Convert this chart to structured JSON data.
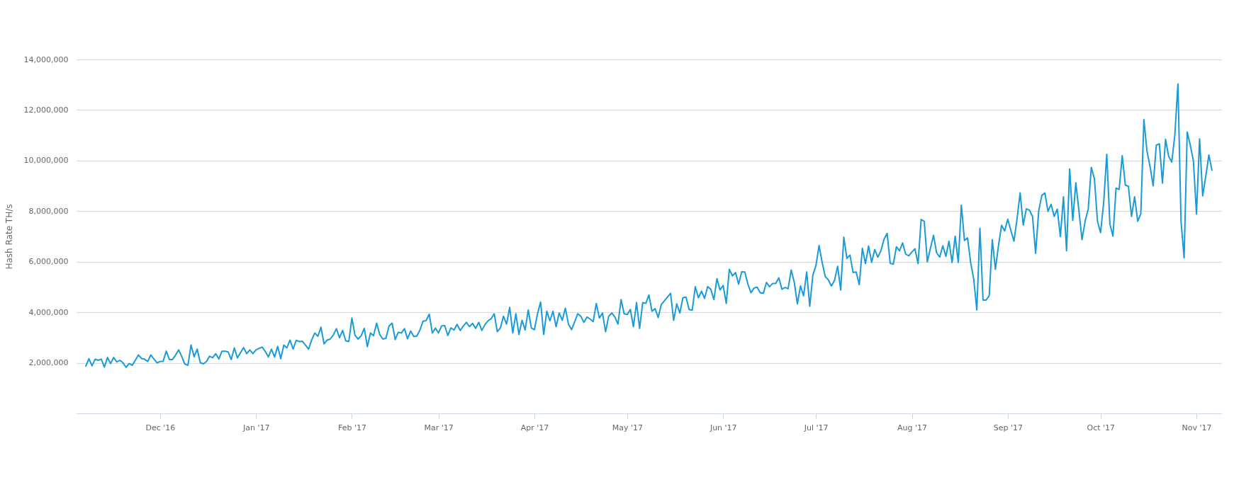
{
  "chart_data": {
    "type": "line",
    "ylabel": "Hash Rate TH/s",
    "xlim": [
      "2016-11-04",
      "2017-11-09"
    ],
    "xticks": [
      {
        "value": "2016-12-01",
        "label": "Dec '16"
      },
      {
        "value": "2017-01-01",
        "label": "Jan '17"
      },
      {
        "value": "2017-02-01",
        "label": "Feb '17"
      },
      {
        "value": "2017-03-01",
        "label": "Mar '17"
      },
      {
        "value": "2017-04-01",
        "label": "Apr '17"
      },
      {
        "value": "2017-05-01",
        "label": "May '17"
      },
      {
        "value": "2017-06-01",
        "label": "Jun '17"
      },
      {
        "value": "2017-07-01",
        "label": "Jul '17"
      },
      {
        "value": "2017-08-01",
        "label": "Aug '17"
      },
      {
        "value": "2017-09-01",
        "label": "Sep '17"
      },
      {
        "value": "2017-10-01",
        "label": "Oct '17"
      },
      {
        "value": "2017-11-01",
        "label": "Nov '17"
      }
    ],
    "ylim": [
      0,
      14000000
    ],
    "yticks": [
      {
        "value": 2000000,
        "label": "2,000,000"
      },
      {
        "value": 4000000,
        "label": "4,000,000"
      },
      {
        "value": 6000000,
        "label": "6,000,000"
      },
      {
        "value": 8000000,
        "label": "8,000,000"
      },
      {
        "value": 10000000,
        "label": "10,000,000"
      },
      {
        "value": 12000000,
        "label": "12,000,000"
      },
      {
        "value": 14000000,
        "label": "14,000,000"
      }
    ],
    "grid": "y",
    "marker": "none",
    "line_style": "solid",
    "series": [
      {
        "color": "#1a9ad6",
        "x": [
          "2016-11-07",
          "2016-11-08",
          "2016-11-09",
          "2016-11-10",
          "2016-11-11",
          "2016-11-12",
          "2016-11-13",
          "2016-11-14",
          "2016-11-15",
          "2016-11-16",
          "2016-11-17",
          "2016-11-18",
          "2016-11-19",
          "2016-11-20",
          "2016-11-21",
          "2016-11-22",
          "2016-11-23",
          "2016-11-24",
          "2016-11-25",
          "2016-11-26",
          "2016-11-27",
          "2016-11-28",
          "2016-11-29",
          "2016-11-30",
          "2016-12-01",
          "2016-12-02",
          "2016-12-03",
          "2016-12-04",
          "2016-12-05",
          "2016-12-06",
          "2016-12-07",
          "2016-12-08",
          "2016-12-09",
          "2016-12-10",
          "2016-12-11",
          "2016-12-12",
          "2016-12-13",
          "2016-12-14",
          "2016-12-15",
          "2016-12-16",
          "2016-12-17",
          "2016-12-18",
          "2016-12-19",
          "2016-12-20",
          "2016-12-21",
          "2016-12-22",
          "2016-12-23",
          "2016-12-24",
          "2016-12-25",
          "2016-12-26",
          "2016-12-27",
          "2016-12-28",
          "2016-12-29",
          "2016-12-30",
          "2016-12-31",
          "2017-01-01",
          "2017-01-02",
          "2017-01-03",
          "2017-01-04",
          "2017-01-05",
          "2017-01-06",
          "2017-01-07",
          "2017-01-08",
          "2017-01-09",
          "2017-01-10",
          "2017-01-11",
          "2017-01-12",
          "2017-01-13",
          "2017-01-14",
          "2017-01-15",
          "2017-01-16",
          "2017-01-17",
          "2017-01-18",
          "2017-01-19",
          "2017-01-20",
          "2017-01-21",
          "2017-01-22",
          "2017-01-23",
          "2017-01-24",
          "2017-01-25",
          "2017-01-26",
          "2017-01-27",
          "2017-01-28",
          "2017-01-29",
          "2017-01-30",
          "2017-01-31",
          "2017-02-01",
          "2017-02-02",
          "2017-02-03",
          "2017-02-04",
          "2017-02-05",
          "2017-02-06",
          "2017-02-07",
          "2017-02-08",
          "2017-02-09",
          "2017-02-10",
          "2017-02-11",
          "2017-02-12",
          "2017-02-13",
          "2017-02-14",
          "2017-02-15",
          "2017-02-16",
          "2017-02-17",
          "2017-02-18",
          "2017-02-19",
          "2017-02-20",
          "2017-02-21",
          "2017-02-22",
          "2017-02-23",
          "2017-02-24",
          "2017-02-25",
          "2017-02-26",
          "2017-02-27",
          "2017-02-28",
          "2017-03-01",
          "2017-03-02",
          "2017-03-03",
          "2017-03-04",
          "2017-03-05",
          "2017-03-06",
          "2017-03-07",
          "2017-03-08",
          "2017-03-09",
          "2017-03-10",
          "2017-03-11",
          "2017-03-12",
          "2017-03-13",
          "2017-03-14",
          "2017-03-15",
          "2017-03-16",
          "2017-03-17",
          "2017-03-18",
          "2017-03-19",
          "2017-03-20",
          "2017-03-21",
          "2017-03-22",
          "2017-03-23",
          "2017-03-24",
          "2017-03-25",
          "2017-03-26",
          "2017-03-27",
          "2017-03-28",
          "2017-03-29",
          "2017-03-30",
          "2017-03-31",
          "2017-04-01",
          "2017-04-02",
          "2017-04-03",
          "2017-04-04",
          "2017-04-05",
          "2017-04-06",
          "2017-04-07",
          "2017-04-08",
          "2017-04-09",
          "2017-04-10",
          "2017-04-11",
          "2017-04-12",
          "2017-04-13",
          "2017-04-14",
          "2017-04-15",
          "2017-04-16",
          "2017-04-17",
          "2017-04-18",
          "2017-04-19",
          "2017-04-20",
          "2017-04-21",
          "2017-04-22",
          "2017-04-23",
          "2017-04-24",
          "2017-04-25",
          "2017-04-26",
          "2017-04-27",
          "2017-04-28",
          "2017-04-29",
          "2017-04-30",
          "2017-05-01",
          "2017-05-02",
          "2017-05-03",
          "2017-05-04",
          "2017-05-05",
          "2017-05-06",
          "2017-05-07",
          "2017-05-08",
          "2017-05-09",
          "2017-05-10",
          "2017-05-11",
          "2017-05-12",
          "2017-05-13",
          "2017-05-14",
          "2017-05-15",
          "2017-05-16",
          "2017-05-17",
          "2017-05-18",
          "2017-05-19",
          "2017-05-20",
          "2017-05-21",
          "2017-05-22",
          "2017-05-23",
          "2017-05-24",
          "2017-05-25",
          "2017-05-26",
          "2017-05-27",
          "2017-05-28",
          "2017-05-29",
          "2017-05-30",
          "2017-05-31",
          "2017-06-01",
          "2017-06-02",
          "2017-06-03",
          "2017-06-04",
          "2017-06-05",
          "2017-06-06",
          "2017-06-07",
          "2017-06-08",
          "2017-06-09",
          "2017-06-10",
          "2017-06-11",
          "2017-06-12",
          "2017-06-13",
          "2017-06-14",
          "2017-06-15",
          "2017-06-16",
          "2017-06-17",
          "2017-06-18",
          "2017-06-19",
          "2017-06-20",
          "2017-06-21",
          "2017-06-22",
          "2017-06-23",
          "2017-06-24",
          "2017-06-25",
          "2017-06-26",
          "2017-06-27",
          "2017-06-28",
          "2017-06-29",
          "2017-06-30",
          "2017-07-01",
          "2017-07-02",
          "2017-07-03",
          "2017-07-04",
          "2017-07-05",
          "2017-07-06",
          "2017-07-07",
          "2017-07-08",
          "2017-07-09",
          "2017-07-10",
          "2017-07-11",
          "2017-07-12",
          "2017-07-13",
          "2017-07-14",
          "2017-07-15",
          "2017-07-16",
          "2017-07-17",
          "2017-07-18",
          "2017-07-19",
          "2017-07-20",
          "2017-07-21",
          "2017-07-22",
          "2017-07-23",
          "2017-07-24",
          "2017-07-25",
          "2017-07-26",
          "2017-07-27",
          "2017-07-28",
          "2017-07-29",
          "2017-07-30",
          "2017-07-31",
          "2017-08-01",
          "2017-08-02",
          "2017-08-03",
          "2017-08-04",
          "2017-08-05",
          "2017-08-06",
          "2017-08-07",
          "2017-08-08",
          "2017-08-09",
          "2017-08-10",
          "2017-08-11",
          "2017-08-12",
          "2017-08-13",
          "2017-08-14",
          "2017-08-15",
          "2017-08-16",
          "2017-08-17",
          "2017-08-18",
          "2017-08-19",
          "2017-08-20",
          "2017-08-21",
          "2017-08-22",
          "2017-08-23",
          "2017-08-24",
          "2017-08-25",
          "2017-08-26",
          "2017-08-27",
          "2017-08-28",
          "2017-08-29",
          "2017-08-30",
          "2017-08-31",
          "2017-09-01",
          "2017-09-02",
          "2017-09-03",
          "2017-09-04",
          "2017-09-05",
          "2017-09-06",
          "2017-09-07",
          "2017-09-08",
          "2017-09-09",
          "2017-09-10",
          "2017-09-11",
          "2017-09-12",
          "2017-09-13",
          "2017-09-14",
          "2017-09-15",
          "2017-09-16",
          "2017-09-17",
          "2017-09-18",
          "2017-09-19",
          "2017-09-20",
          "2017-09-21",
          "2017-09-22",
          "2017-09-23",
          "2017-09-24",
          "2017-09-25",
          "2017-09-26",
          "2017-09-27",
          "2017-09-28",
          "2017-09-29",
          "2017-09-30",
          "2017-10-01",
          "2017-10-02",
          "2017-10-03",
          "2017-10-04",
          "2017-10-05",
          "2017-10-06",
          "2017-10-07",
          "2017-10-08",
          "2017-10-09",
          "2017-10-10",
          "2017-10-11",
          "2017-10-12",
          "2017-10-13",
          "2017-10-14",
          "2017-10-15",
          "2017-10-16",
          "2017-10-17",
          "2017-10-18",
          "2017-10-19",
          "2017-10-20",
          "2017-10-21",
          "2017-10-22",
          "2017-10-23",
          "2017-10-24",
          "2017-10-25",
          "2017-10-26",
          "2017-10-27",
          "2017-10-28",
          "2017-10-29",
          "2017-10-30",
          "2017-10-31",
          "2017-11-01",
          "2017-11-02",
          "2017-11-03",
          "2017-11-04",
          "2017-11-05",
          "2017-11-06"
        ],
        "values": [
          1870000,
          2160000,
          1880000,
          2140000,
          2100000,
          2140000,
          1830000,
          2210000,
          1970000,
          2210000,
          2030000,
          2100000,
          2000000,
          1820000,
          1970000,
          1900000,
          2100000,
          2310000,
          2170000,
          2140000,
          2050000,
          2310000,
          2150000,
          2000000,
          2050000,
          2060000,
          2460000,
          2130000,
          2130000,
          2300000,
          2510000,
          2250000,
          1950000,
          1900000,
          2700000,
          2240000,
          2540000,
          2000000,
          1960000,
          2050000,
          2260000,
          2200000,
          2360000,
          2150000,
          2460000,
          2460000,
          2430000,
          2130000,
          2590000,
          2190000,
          2400000,
          2600000,
          2360000,
          2510000,
          2360000,
          2510000,
          2570000,
          2620000,
          2450000,
          2230000,
          2540000,
          2230000,
          2650000,
          2160000,
          2700000,
          2590000,
          2900000,
          2540000,
          2890000,
          2840000,
          2850000,
          2700000,
          2540000,
          2900000,
          3180000,
          3050000,
          3410000,
          2750000,
          2900000,
          2940000,
          3100000,
          3350000,
          2990000,
          3280000,
          2870000,
          2840000,
          3770000,
          3090000,
          2940000,
          3070000,
          3360000,
          2640000,
          3180000,
          3070000,
          3570000,
          3120000,
          2940000,
          2970000,
          3450000,
          3570000,
          2920000,
          3210000,
          3180000,
          3350000,
          2950000,
          3260000,
          3040000,
          3060000,
          3300000,
          3650000,
          3670000,
          3920000,
          3180000,
          3370000,
          3180000,
          3460000,
          3470000,
          3080000,
          3380000,
          3300000,
          3520000,
          3280000,
          3450000,
          3600000,
          3430000,
          3560000,
          3360000,
          3600000,
          3280000,
          3510000,
          3660000,
          3740000,
          3940000,
          3230000,
          3380000,
          3840000,
          3530000,
          4190000,
          3180000,
          3940000,
          3120000,
          3680000,
          3300000,
          4090000,
          3380000,
          3310000,
          3940000,
          4400000,
          3120000,
          4040000,
          3660000,
          4040000,
          3430000,
          3970000,
          3680000,
          4160000,
          3530000,
          3310000,
          3620000,
          3940000,
          3840000,
          3600000,
          3810000,
          3730000,
          3630000,
          4350000,
          3770000,
          3970000,
          3230000,
          3840000,
          3970000,
          3810000,
          3530000,
          4500000,
          3940000,
          3910000,
          4110000,
          3430000,
          4380000,
          3360000,
          4380000,
          4350000,
          4680000,
          4040000,
          4140000,
          3790000,
          4300000,
          4450000,
          4600000,
          4750000,
          3680000,
          4330000,
          3970000,
          4570000,
          4600000,
          4110000,
          4080000,
          5010000,
          4570000,
          4830000,
          4550000,
          5010000,
          4910000,
          4500000,
          5330000,
          4880000,
          5060000,
          4350000,
          5700000,
          5440000,
          5570000,
          5110000,
          5600000,
          5590000,
          5110000,
          4770000,
          4960000,
          4990000,
          4770000,
          4750000,
          5180000,
          5010000,
          5140000,
          5140000,
          5360000,
          4910000,
          4980000,
          4930000,
          5670000,
          5180000,
          4330000,
          5040000,
          4650000,
          5590000,
          4240000,
          5470000,
          5850000,
          6640000,
          5970000,
          5410000,
          5280000,
          5040000,
          5260000,
          5820000,
          4880000,
          6970000,
          6130000,
          6260000,
          5570000,
          5590000,
          5090000,
          6530000,
          5920000,
          6620000,
          5970000,
          6480000,
          6180000,
          6430000,
          6890000,
          7120000,
          5940000,
          5900000,
          6590000,
          6430000,
          6740000,
          6300000,
          6230000,
          6380000,
          6510000,
          5920000,
          7670000,
          7600000,
          5990000,
          6530000,
          7040000,
          6350000,
          6180000,
          6630000,
          6210000,
          6810000,
          5970000,
          7010000,
          5970000,
          8240000,
          6840000,
          6940000,
          5970000,
          5310000,
          4090000,
          7320000,
          4480000,
          4480000,
          4650000,
          6870000,
          5700000,
          6640000,
          7440000,
          7220000,
          7680000,
          7240000,
          6810000,
          7700000,
          8720000,
          7450000,
          8090000,
          8040000,
          7790000,
          6330000,
          8010000,
          8620000,
          8720000,
          7990000,
          8270000,
          7790000,
          8080000,
          6990000,
          8570000,
          6430000,
          9670000,
          7630000,
          9120000,
          8010000,
          6870000,
          7600000,
          8080000,
          9730000,
          9280000,
          7600000,
          7150000,
          8340000,
          10250000,
          7500000,
          7010000,
          8910000,
          8860000,
          10190000,
          9030000,
          8980000,
          7790000,
          8570000,
          7600000,
          7890000,
          11620000,
          10370000,
          9760000,
          9000000,
          10610000,
          10660000,
          9110000,
          10840000,
          10170000,
          9940000,
          11010000,
          13030000,
          7600000,
          6150000,
          11130000,
          10610000,
          9990000,
          7880000,
          10860000,
          8600000,
          9380000,
          10220000,
          9620000
        ]
      }
    ]
  }
}
